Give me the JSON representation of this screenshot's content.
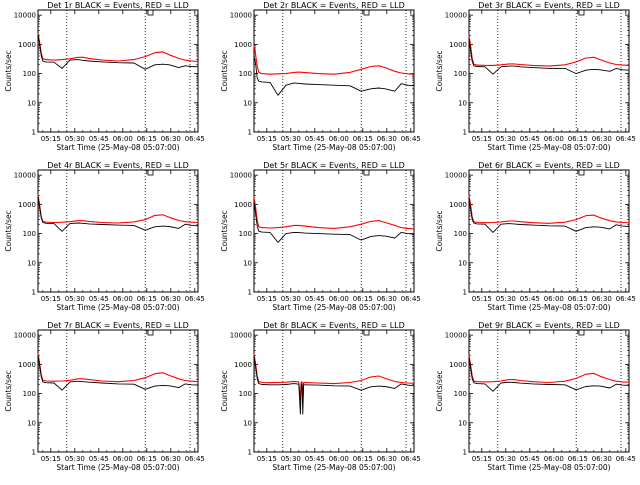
{
  "figure": {
    "xlabel": "Start Time (25-May-08 05:07:00)",
    "ylabel": "Counts/sec",
    "x_ticks": [
      "05:15",
      "05:30",
      "05:45",
      "06:00",
      "06:15",
      "06:30",
      "06:45"
    ],
    "y_ticks": [
      "1",
      "10",
      "100",
      "1000",
      "10000"
    ],
    "colors": {
      "events": "#000000",
      "lld": "#ff0000"
    }
  },
  "chart_data": [
    {
      "type": "line",
      "title": "Det 1r BLACK = Events, RED = LLD",
      "xlabel": "Start Time (25-May-08 05:07:00)",
      "ylabel": "Counts/sec",
      "xlim": [
        "05:07",
        "06:47"
      ],
      "ylim": [
        1,
        15000
      ],
      "yscale": "log",
      "x_minutes": [
        0,
        1,
        2,
        3,
        5,
        10,
        15,
        20,
        25,
        28,
        32,
        40,
        50,
        60,
        67,
        73,
        78,
        82,
        88,
        92,
        96,
        100
      ],
      "series": [
        {
          "name": "Events",
          "color": "#000000",
          "values": [
            2200,
            1000,
            420,
            270,
            250,
            245,
            150,
            290,
            300,
            285,
            270,
            250,
            235,
            230,
            140,
            200,
            210,
            200,
            160,
            185,
            175,
            170
          ]
        },
        {
          "name": "LLD",
          "color": "#ff0000",
          "values": [
            2400,
            1200,
            520,
            320,
            300,
            290,
            300,
            320,
            360,
            360,
            330,
            290,
            270,
            300,
            380,
            520,
            550,
            440,
            330,
            290,
            270,
            260
          ]
        }
      ],
      "vlines_min": [
        18,
        67,
        95
      ]
    },
    {
      "type": "line",
      "title": "Det 2r BLACK = Events, RED = LLD",
      "xlabel": "Start Time (25-May-08 05:07:00)",
      "ylabel": "Counts/sec",
      "xlim": [
        "05:07",
        "06:47"
      ],
      "ylim": [
        1,
        15000
      ],
      "yscale": "log",
      "x_minutes": [
        0,
        1,
        2,
        3,
        5,
        10,
        15,
        20,
        25,
        28,
        32,
        40,
        50,
        60,
        67,
        73,
        78,
        82,
        88,
        92,
        96,
        100
      ],
      "series": [
        {
          "name": "Events",
          "color": "#000000",
          "values": [
            400,
            220,
            70,
            55,
            52,
            50,
            18,
            40,
            48,
            46,
            44,
            42,
            40,
            38,
            25,
            30,
            32,
            30,
            25,
            45,
            40,
            38
          ]
        },
        {
          "name": "LLD",
          "color": "#ff0000",
          "values": [
            900,
            450,
            180,
            110,
            100,
            95,
            98,
            100,
            110,
            112,
            108,
            100,
            95,
            110,
            140,
            175,
            185,
            160,
            120,
            105,
            98,
            95
          ]
        }
      ],
      "vlines_min": [
        18,
        67,
        95
      ]
    },
    {
      "type": "line",
      "title": "Det 3r BLACK = Events, RED = LLD",
      "xlabel": "Start Time (25-May-08 05:07:00)",
      "ylabel": "Counts/sec",
      "xlim": [
        "05:07",
        "06:47"
      ],
      "ylim": [
        1,
        15000
      ],
      "yscale": "log",
      "x_minutes": [
        0,
        1,
        2,
        3,
        5,
        10,
        15,
        20,
        25,
        28,
        32,
        40,
        50,
        60,
        67,
        73,
        78,
        82,
        88,
        92,
        96,
        100
      ],
      "series": [
        {
          "name": "Events",
          "color": "#000000",
          "values": [
            1500,
            600,
            260,
            185,
            175,
            170,
            95,
            170,
            180,
            180,
            170,
            160,
            150,
            150,
            100,
            130,
            140,
            135,
            120,
            150,
            135,
            130
          ]
        },
        {
          "name": "LLD",
          "color": "#ff0000",
          "values": [
            2000,
            900,
            330,
            210,
            195,
            190,
            190,
            200,
            215,
            215,
            205,
            190,
            180,
            200,
            250,
            340,
            360,
            300,
            230,
            205,
            195,
            190
          ]
        }
      ],
      "vlines_min": [
        18,
        67,
        95
      ]
    },
    {
      "type": "line",
      "title": "Det 4r BLACK = Events, RED = LLD",
      "xlabel": "Start Time (25-May-08 05:07:00)",
      "ylabel": "Counts/sec",
      "xlim": [
        "05:07",
        "06:47"
      ],
      "ylim": [
        1,
        15000
      ],
      "yscale": "log",
      "x_minutes": [
        0,
        1,
        2,
        3,
        5,
        10,
        15,
        20,
        25,
        28,
        32,
        40,
        50,
        60,
        67,
        73,
        78,
        82,
        88,
        92,
        96,
        100
      ],
      "series": [
        {
          "name": "Events",
          "color": "#000000",
          "values": [
            1800,
            800,
            350,
            240,
            225,
            220,
            120,
            220,
            230,
            225,
            215,
            205,
            195,
            190,
            130,
            170,
            180,
            175,
            150,
            210,
            190,
            185
          ]
        },
        {
          "name": "LLD",
          "color": "#ff0000",
          "values": [
            2200,
            1000,
            380,
            260,
            245,
            240,
            245,
            255,
            275,
            275,
            260,
            240,
            230,
            250,
            300,
            420,
            440,
            360,
            280,
            255,
            245,
            240
          ]
        }
      ],
      "vlines_min": [
        18,
        67,
        95
      ]
    },
    {
      "type": "line",
      "title": "Det 5r BLACK = Events, RED = LLD",
      "xlabel": "Start Time (25-May-08 05:07:00)",
      "ylabel": "Counts/sec",
      "xlim": [
        "05:07",
        "06:47"
      ],
      "ylim": [
        1,
        15000
      ],
      "yscale": "log",
      "x_minutes": [
        0,
        1,
        2,
        3,
        5,
        10,
        15,
        20,
        25,
        28,
        32,
        40,
        50,
        60,
        67,
        73,
        78,
        82,
        88,
        92,
        96,
        100
      ],
      "series": [
        {
          "name": "Events",
          "color": "#000000",
          "values": [
            1200,
            500,
            180,
            120,
            112,
            110,
            50,
            100,
            110,
            108,
            104,
            100,
            95,
            92,
            60,
            80,
            85,
            82,
            70,
            110,
            100,
            95
          ]
        },
        {
          "name": "LLD",
          "color": "#ff0000",
          "values": [
            1800,
            800,
            280,
            170,
            160,
            155,
            160,
            170,
            190,
            190,
            180,
            160,
            150,
            170,
            210,
            260,
            280,
            240,
            190,
            160,
            150,
            145
          ]
        }
      ],
      "vlines_min": [
        18,
        67,
        95
      ]
    },
    {
      "type": "line",
      "title": "Det 6r BLACK = Events, RED = LLD",
      "xlabel": "Start Time (25-May-08 05:07:00)",
      "ylabel": "Counts/sec",
      "xlim": [
        "05:07",
        "06:47"
      ],
      "ylim": [
        1,
        15000
      ],
      "yscale": "log",
      "x_minutes": [
        0,
        1,
        2,
        3,
        5,
        10,
        15,
        20,
        25,
        28,
        32,
        40,
        50,
        60,
        67,
        73,
        78,
        82,
        88,
        92,
        96,
        100
      ],
      "series": [
        {
          "name": "Events",
          "color": "#000000",
          "values": [
            1600,
            700,
            300,
            230,
            215,
            210,
            110,
            210,
            220,
            215,
            205,
            195,
            185,
            180,
            120,
            160,
            170,
            165,
            145,
            200,
            180,
            175
          ]
        },
        {
          "name": "LLD",
          "color": "#ff0000",
          "values": [
            2100,
            950,
            370,
            255,
            240,
            235,
            240,
            250,
            270,
            270,
            255,
            235,
            225,
            245,
            300,
            410,
            430,
            350,
            275,
            250,
            240,
            235
          ]
        }
      ],
      "vlines_min": [
        18,
        67,
        95
      ]
    },
    {
      "type": "line",
      "title": "Det 7r BLACK = Events, RED = LLD",
      "xlabel": "Start Time (25-May-08 05:07:00)",
      "ylabel": "Counts/sec",
      "xlim": [
        "05:07",
        "06:47"
      ],
      "ylim": [
        1,
        15000
      ],
      "yscale": "log",
      "x_minutes": [
        0,
        1,
        2,
        3,
        5,
        10,
        15,
        20,
        25,
        28,
        32,
        40,
        50,
        60,
        67,
        73,
        78,
        82,
        88,
        92,
        96,
        100
      ],
      "series": [
        {
          "name": "Events",
          "color": "#000000",
          "values": [
            2000,
            900,
            380,
            250,
            235,
            230,
            130,
            250,
            265,
            255,
            245,
            230,
            215,
            210,
            140,
            180,
            190,
            185,
            160,
            215,
            200,
            195
          ]
        },
        {
          "name": "LLD",
          "color": "#ff0000",
          "values": [
            2400,
            1100,
            450,
            285,
            270,
            265,
            270,
            285,
            320,
            320,
            300,
            270,
            255,
            280,
            350,
            480,
            520,
            420,
            320,
            280,
            265,
            255
          ]
        }
      ],
      "vlines_min": [
        18,
        67,
        95
      ]
    },
    {
      "type": "line",
      "title": "Det 8r BLACK = Events, RED = LLD",
      "xlabel": "Start Time (25-May-08 05:07:00)",
      "ylabel": "Counts/sec",
      "xlim": [
        "05:07",
        "06:47"
      ],
      "ylim": [
        1,
        15000
      ],
      "yscale": "log",
      "x_minutes": [
        0,
        1,
        2,
        3,
        5,
        10,
        15,
        20,
        25,
        28,
        29,
        29.5,
        30,
        30.5,
        31,
        32,
        40,
        50,
        60,
        67,
        73,
        78,
        82,
        88,
        92,
        96,
        100
      ],
      "series": [
        {
          "name": "Events",
          "color": "#000000",
          "values": [
            1900,
            850,
            320,
            220,
            205,
            200,
            200,
            205,
            220,
            210,
            20,
            200,
            220,
            20,
            200,
            200,
            195,
            185,
            180,
            130,
            170,
            180,
            175,
            150,
            215,
            195,
            185
          ]
        },
        {
          "name": "LLD",
          "color": "#ff0000",
          "values": [
            2300,
            1050,
            390,
            255,
            240,
            235,
            240,
            245,
            260,
            250,
            60,
            240,
            255,
            55,
            235,
            240,
            230,
            220,
            240,
            280,
            370,
            400,
            330,
            260,
            240,
            230,
            225
          ]
        }
      ],
      "vlines_min": [
        18,
        67,
        95
      ]
    },
    {
      "type": "line",
      "title": "Det 9r BLACK = Events, RED = LLD",
      "xlabel": "Start Time (25-May-08 05:07:00)",
      "ylabel": "Counts/sec",
      "xlim": [
        "05:07",
        "06:47"
      ],
      "ylim": [
        1,
        15000
      ],
      "yscale": "log",
      "x_minutes": [
        0,
        1,
        2,
        3,
        5,
        10,
        15,
        20,
        25,
        28,
        32,
        40,
        50,
        60,
        67,
        73,
        78,
        82,
        88,
        92,
        96,
        100
      ],
      "series": [
        {
          "name": "Events",
          "color": "#000000",
          "values": [
            1700,
            750,
            320,
            235,
            220,
            215,
            120,
            230,
            245,
            240,
            228,
            215,
            205,
            200,
            135,
            175,
            185,
            180,
            155,
            210,
            195,
            190
          ]
        },
        {
          "name": "LLD",
          "color": "#ff0000",
          "values": [
            2100,
            950,
            400,
            270,
            255,
            250,
            255,
            270,
            300,
            300,
            280,
            255,
            240,
            265,
            330,
            460,
            490,
            390,
            300,
            265,
            250,
            245
          ]
        }
      ],
      "vlines_min": [
        18,
        67,
        95
      ]
    }
  ]
}
